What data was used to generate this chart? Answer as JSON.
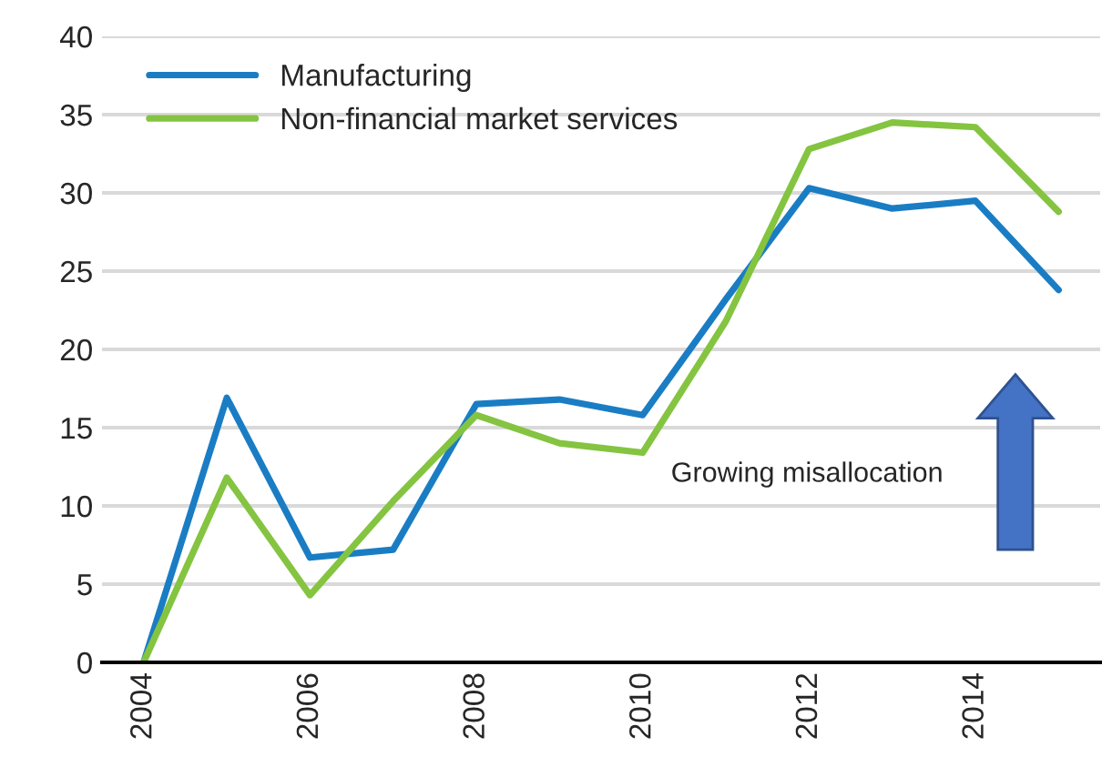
{
  "chart_data": {
    "type": "line",
    "categories": [
      "2004",
      null,
      "2006",
      null,
      "2008",
      null,
      "2010",
      null,
      "2012",
      null,
      "2014",
      null
    ],
    "series": [
      {
        "name": "Manufacturing",
        "color": "#1a7dc4",
        "values": [
          0,
          16.9,
          6.7,
          7.2,
          16.5,
          16.8,
          15.8,
          23.2,
          30.3,
          29.0,
          29.5,
          23.8
        ]
      },
      {
        "name": "Non-financial market services",
        "color": "#84c441",
        "values": [
          0,
          11.8,
          4.3,
          10.3,
          15.8,
          14.0,
          13.4,
          21.8,
          32.8,
          34.5,
          34.2,
          28.8
        ]
      }
    ],
    "ylim": [
      0,
      40
    ],
    "yticks": [
      0,
      5,
      10,
      15,
      20,
      25,
      30,
      35,
      40
    ],
    "grid": "y",
    "legend": "top left",
    "marker": "none",
    "line_style": "solid",
    "annotations": [
      "Growing misallocation"
    ]
  }
}
